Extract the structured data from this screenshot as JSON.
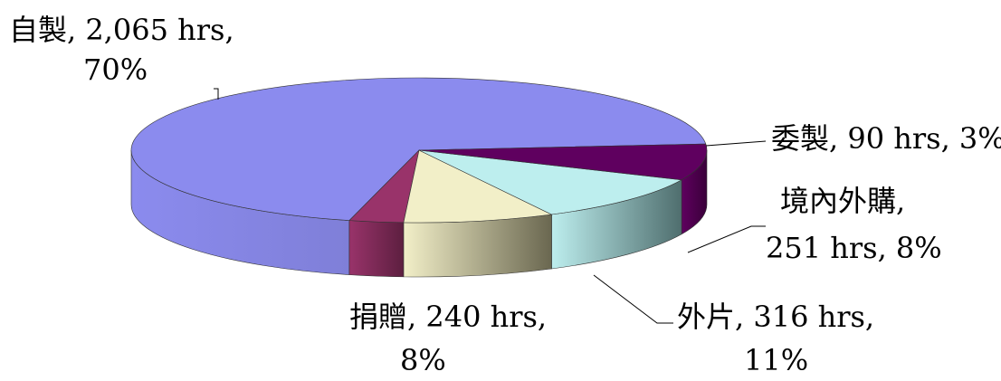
{
  "chart_data": {
    "type": "pie",
    "title": "",
    "series": [
      {
        "name": "",
        "slices": [
          {
            "category": "自製",
            "hours": 2065,
            "percent": 70,
            "label_lines": [
              "自製, 2,065 hrs,",
              "70%"
            ],
            "top_color": "#8b8bee",
            "side_color": "#7f7fd8"
          },
          {
            "category": "委製",
            "hours": 90,
            "percent": 3,
            "label_lines": [
              "委製, 90 hrs, 3%"
            ],
            "top_color": "#99336a",
            "side_color": "#5d1f40"
          },
          {
            "category": "境內外購",
            "hours": 251,
            "percent": 8,
            "label_lines": [
              "境內外購,",
              "251 hrs, 8%"
            ],
            "top_color": "#f2efc8",
            "side_color": "#6a6750"
          },
          {
            "category": "外片",
            "hours": 316,
            "percent": 11,
            "label_lines": [
              "外片, 316 hrs,",
              "11%"
            ],
            "top_color": "#bdeeee",
            "side_color": "#4f6e6e"
          },
          {
            "category": "捐贈",
            "hours": 240,
            "percent": 8,
            "label_lines": [
              "捐贈, 240 hrs,",
              "8%"
            ],
            "top_color": "#5f005f",
            "side_color": "#3a003a"
          }
        ]
      }
    ],
    "legend": "none"
  }
}
